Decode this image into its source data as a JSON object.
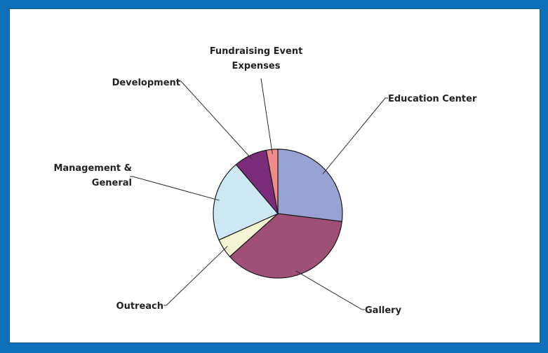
{
  "chart_data": {
    "type": "pie",
    "title": "",
    "start_angle_deg": 0,
    "direction": "clockwise",
    "slices": [
      {
        "label": "Education Center",
        "value": 26.2,
        "color": "#99a3d3"
      },
      {
        "label": "Gallery",
        "value": 35.4,
        "color": "#9e5077"
      },
      {
        "label": "Outreach",
        "value": 4.8,
        "color": "#f3f4d2"
      },
      {
        "label": "Management & General",
        "value": 19.9,
        "color": "#cde9f6"
      },
      {
        "label": "Development",
        "value": 8.1,
        "color": "#7a2c7a"
      },
      {
        "label": "Fundraising Event Expenses",
        "value": 2.8,
        "color": "#f08b89"
      }
    ],
    "legend": "none",
    "label_lines": [
      [
        "Education Center"
      ],
      [
        "Gallery"
      ],
      [
        "Outreach"
      ],
      [
        "Management &",
        "General"
      ],
      [
        "Development"
      ],
      [
        "Fundraising Event",
        "Expenses"
      ]
    ]
  }
}
